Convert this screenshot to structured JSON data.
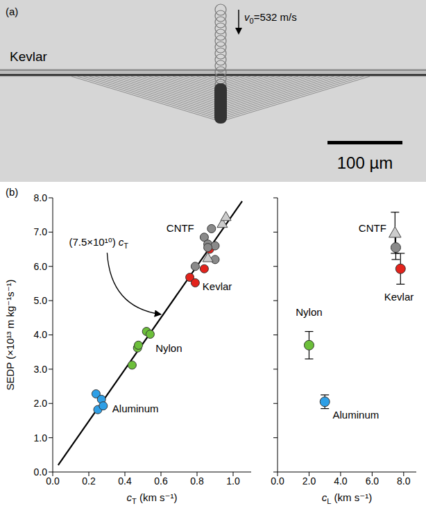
{
  "panel_a": {
    "letter": "(a)",
    "material": "Kevlar",
    "velocity": {
      "symbol": "v",
      "subscript": "0",
      "text": "=532 m/s"
    },
    "scale_bar": "100 µm"
  },
  "panel_b": {
    "letter": "(b)"
  },
  "chart_data": [
    {
      "type": "scatter",
      "y_label": "SEDP (×10¹³ m kg⁻¹s⁻¹)",
      "x_label": {
        "symbol": "c",
        "subscript": "T",
        "text": " (km s⁻¹)"
      },
      "xlim": [
        0,
        1.1
      ],
      "xticks": [
        {
          "value": 0,
          "label": "0.0"
        },
        0.2,
        0.4,
        0.6,
        0.8,
        {
          "value": 1,
          "label": "1.0"
        }
      ],
      "ylim": [
        0,
        8
      ],
      "yticks": [
        {
          "value": 0,
          "label": "0.0"
        },
        {
          "value": 1,
          "label": "1.0"
        },
        {
          "value": 2,
          "label": "2.0"
        },
        {
          "value": 3,
          "label": "3.0"
        },
        {
          "value": 4,
          "label": "4.0"
        },
        {
          "value": 5,
          "label": "5.0"
        },
        {
          "value": 6,
          "label": "6.0"
        },
        {
          "value": 7,
          "label": "7.0"
        },
        {
          "value": 8,
          "label": "8.0"
        }
      ],
      "tick_labels": true,
      "annotation": {
        "text": "(7.5×10¹⁰) ",
        "symbol": "c",
        "subscript": "T"
      },
      "series": [
        {
          "name": "Aluminum",
          "color": "#2e9fe6",
          "marker": "circle",
          "x": [
            0.24,
            0.27,
            0.25,
            0.28
          ],
          "values": [
            2.28,
            2.12,
            1.82,
            1.93
          ]
        },
        {
          "name": "Nylon",
          "color": "#6cbf3a",
          "marker": "circle",
          "x": [
            0.44,
            0.47,
            0.475,
            0.52,
            0.54
          ],
          "values": [
            3.12,
            3.62,
            3.7,
            4.1,
            4.02
          ]
        },
        {
          "name": "Kevlar",
          "color": "#e3231c",
          "marker": "circle",
          "x": [
            0.76,
            0.79,
            0.84,
            0.87
          ],
          "values": [
            5.68,
            5.52,
            5.93,
            6.5
          ]
        },
        {
          "name": "CNTF",
          "color": "#8a8a8a",
          "marker": "circle",
          "x": [
            0.79,
            0.84,
            0.86,
            0.88,
            0.9,
            0.9,
            0.86
          ],
          "values": [
            6.0,
            6.85,
            6.65,
            7.1,
            6.6,
            6.2,
            6.55
          ]
        },
        {
          "name": "CNTF",
          "color": "#cccccc",
          "marker": "triangle",
          "x": [
            0.94,
            0.96,
            0.86
          ],
          "values": [
            7.25,
            7.45,
            6.25
          ]
        },
        {
          "type": "line",
          "color": "#000000",
          "line_style": "solid",
          "x": [
            0.03,
            1.05
          ],
          "values": [
            0.2,
            7.9
          ]
        }
      ]
    },
    {
      "type": "scatter",
      "x_label": {
        "symbol": "c",
        "subscript": "L",
        "text": " (km s⁻¹)"
      },
      "xlim": [
        0,
        8.8
      ],
      "xticks": [
        {
          "value": 0,
          "label": "0.0"
        },
        {
          "value": 2,
          "label": "2.0"
        },
        {
          "value": 4,
          "label": "4.0"
        },
        {
          "value": 6,
          "label": "6.0"
        },
        {
          "value": 8,
          "label": "8.0"
        }
      ],
      "ylim": [
        0,
        8
      ],
      "yticks": [
        0,
        1,
        2,
        3,
        4,
        5,
        6,
        7,
        8
      ],
      "tick_labels": "x",
      "series": [
        {
          "name": "Aluminum",
          "color": "#2e9fe6",
          "marker": "circle",
          "x": [
            3.0
          ],
          "values": [
            2.05
          ],
          "errors": [
            0.2
          ]
        },
        {
          "name": "Nylon",
          "color": "#6cbf3a",
          "marker": "circle",
          "x": [
            2.0
          ],
          "values": [
            3.7
          ],
          "errors": [
            0.4
          ]
        },
        {
          "name": "Kevlar",
          "color": "#e3231c",
          "marker": "circle",
          "x": [
            7.8
          ],
          "values": [
            5.93
          ],
          "errors": [
            0.45
          ]
        },
        {
          "name": "CNTF",
          "color": "#8a8a8a",
          "marker": "circle",
          "x": [
            7.5
          ],
          "values": [
            6.55
          ],
          "errors": [
            0.35
          ]
        },
        {
          "name": "CNTF",
          "color": "#cccccc",
          "marker": "triangle",
          "x": [
            7.45
          ],
          "values": [
            6.98
          ],
          "errors": [
            0.6
          ]
        }
      ]
    }
  ]
}
